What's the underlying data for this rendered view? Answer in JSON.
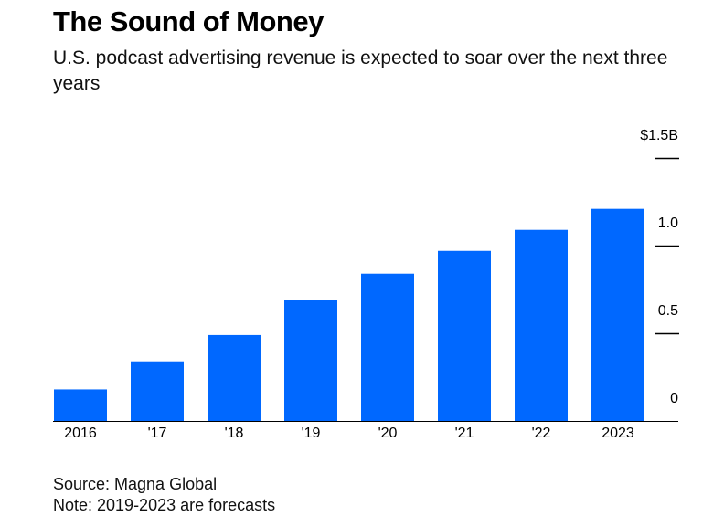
{
  "header": {
    "title": "The Sound of Money",
    "subtitle": "U.S. podcast advertising revenue is expected to soar over the next three years"
  },
  "footer": {
    "source": "Source: Magna Global",
    "note": "Note: 2019-2023 are forecasts"
  },
  "colors": {
    "bar": "#0068ff",
    "axis": "#000000"
  },
  "chart_data": {
    "type": "bar",
    "categories": [
      "2016",
      "'17",
      "'18",
      "'19",
      "'20",
      "'21",
      "'22",
      "2023"
    ],
    "values": [
      0.18,
      0.34,
      0.49,
      0.69,
      0.84,
      0.97,
      1.09,
      1.21
    ],
    "y_tick_values": [
      0,
      0.5,
      1.0,
      1.5
    ],
    "y_tick_labels": [
      "0",
      "0.5",
      "1.0",
      "$1.5B"
    ],
    "ylim": [
      0,
      1.5
    ],
    "grid": false,
    "y_axis_position": "right",
    "legend": "none"
  }
}
